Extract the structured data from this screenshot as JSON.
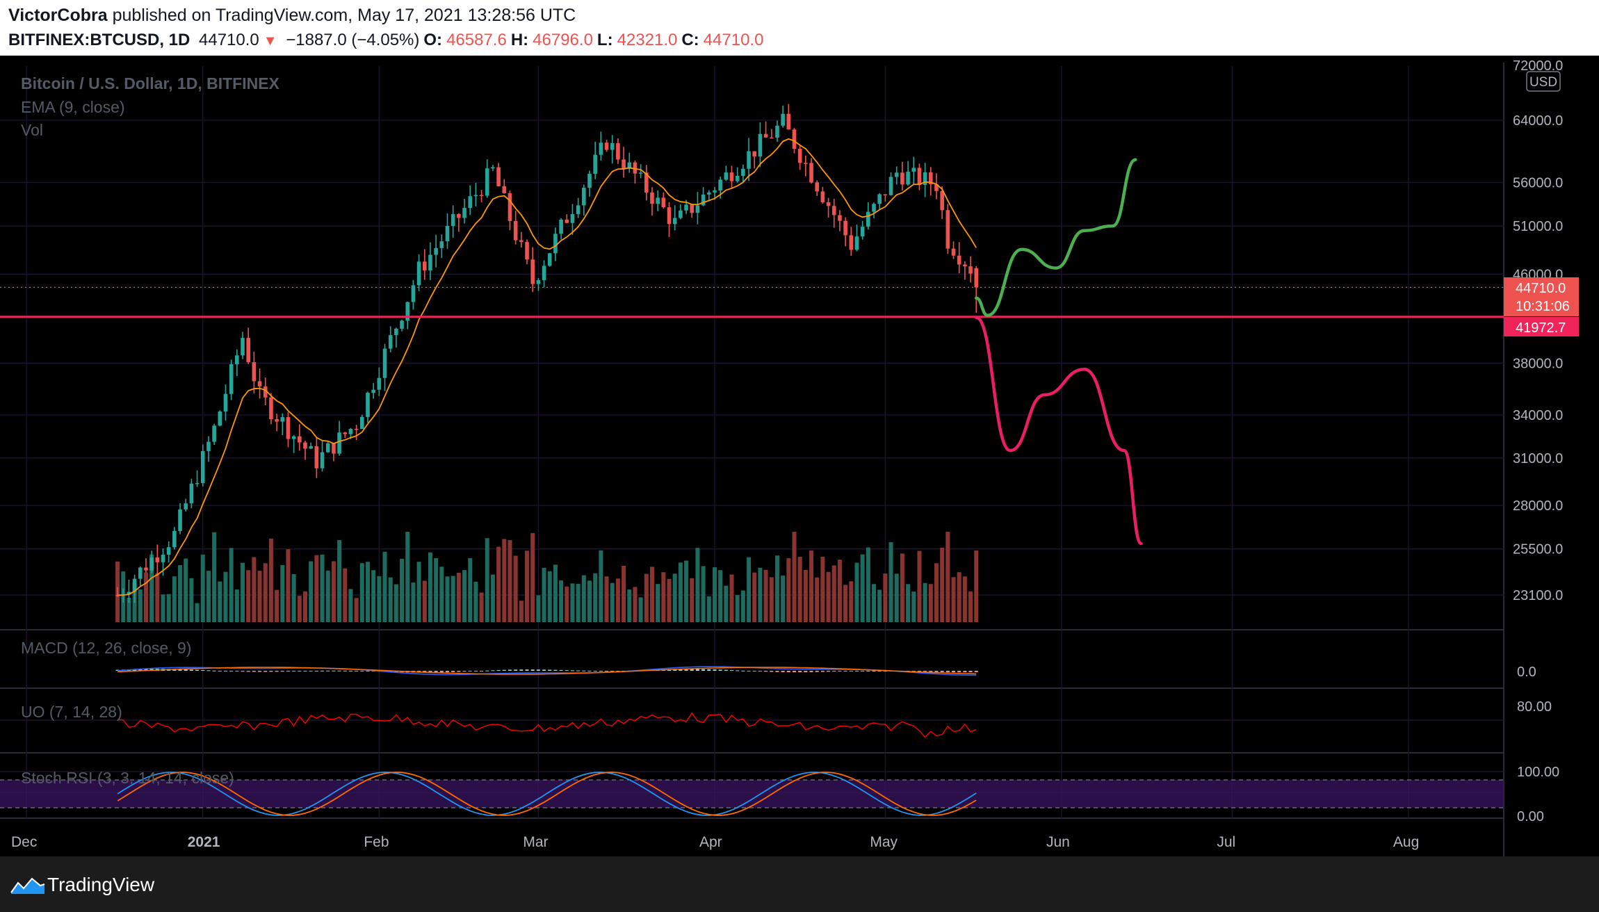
{
  "header": {
    "author": "VictorCobra",
    "published_text": "published on TradingView.com, May 17, 2021 13:28:56 UTC",
    "symbol": "BITFINEX:BTCUSD, 1D",
    "last": "44710.0",
    "change": "−1887.0 (−4.05%)",
    "o_label": "O:",
    "o_value": "46587.6",
    "h_label": "H:",
    "h_value": "46796.0",
    "l_label": "L:",
    "l_value": "42321.0",
    "c_label": "C:",
    "c_value": "44710.0"
  },
  "legend": {
    "title": "Bitcoin / U.S. Dollar, 1D, BITFINEX",
    "ema": "EMA (9, close)",
    "vol": "Vol"
  },
  "panes": {
    "macd": "MACD (12, 26, close, 9)",
    "uo": "UO (7, 14, 28)",
    "stoch": "Stoch RSI (3, 3, 14, 14, close)"
  },
  "footer": {
    "brand": "TradingView"
  },
  "colors": {
    "background": "#000000",
    "up": "#26a69a",
    "down": "#ef5350",
    "ema": "#ff9800",
    "level_line": "#f0235b",
    "bull_path": "#4caf50",
    "bear_path": "#e91e63",
    "macd": "#2962ff",
    "signal": "#ff6d00",
    "uo": "#ff0000",
    "stoch_k": "#2196f3",
    "stoch_d": "#ff6d00",
    "stoch_band": "#3a1460"
  },
  "chart_data": {
    "type": "candlestick",
    "price_axis": {
      "currency": "USD",
      "scale": "log",
      "ticks": [
        "72000.0",
        "64000.0",
        "56000.0",
        "51000.0",
        "46000.0",
        "38000.0",
        "34000.0",
        "31000.0",
        "28000.0",
        "25500.0",
        "23100.0"
      ],
      "range": [
        21500,
        72000
      ]
    },
    "time_axis": {
      "labels": [
        "Dec",
        "2021",
        "Feb",
        "Mar",
        "Apr",
        "May",
        "Jun",
        "Jul",
        "Aug"
      ]
    },
    "last_price": {
      "value": "44710.0",
      "countdown": "10:31:06"
    },
    "horizontal_level": {
      "value": "41972.7"
    },
    "ohlc_anchor_points": [
      [
        "2020-12-17",
        19400,
        23600,
        19300,
        23100
      ],
      [
        "2020-12-27",
        26200,
        28400,
        24500,
        26300
      ],
      [
        "2021-01-03",
        32200,
        34800,
        29000,
        33000
      ],
      [
        "2021-01-08",
        40500,
        41950,
        36600,
        40200
      ],
      [
        "2021-01-11",
        38200,
        38200,
        30500,
        35400
      ],
      [
        "2021-01-21",
        35500,
        35600,
        30100,
        30800
      ],
      [
        "2021-01-28",
        30400,
        34000,
        29800,
        33400
      ],
      [
        "2021-02-08",
        38800,
        46600,
        38000,
        46400
      ],
      [
        "2021-02-21",
        55800,
        58300,
        54000,
        57400
      ],
      [
        "2021-02-28",
        46200,
        48200,
        43000,
        45200
      ],
      [
        "2021-03-13",
        57100,
        61700,
        56000,
        61200
      ],
      [
        "2021-03-25",
        52300,
        53000,
        50600,
        51300
      ],
      [
        "2021-04-13",
        60000,
        64800,
        59800,
        63600
      ],
      [
        "2021-04-25",
        50000,
        50500,
        47000,
        49000
      ],
      [
        "2021-05-03",
        56600,
        58900,
        56400,
        57200
      ],
      [
        "2021-05-10",
        58200,
        59500,
        53400,
        55800
      ],
      [
        "2021-05-12",
        56700,
        58000,
        48800,
        49500
      ],
      [
        "2021-05-16",
        46400,
        49700,
        43900,
        46600
      ],
      [
        "2021-05-17",
        46587.6,
        46796.0,
        42321.0,
        44710.0
      ]
    ],
    "indicators": {
      "ema": "EMA (9, close)",
      "macd_zero": "0.0",
      "uo_level": "80.00",
      "stoch_levels": [
        "100.00",
        "0.00"
      ]
    },
    "annotations": [
      {
        "name": "bullish-projection",
        "points": [
          [
            "2021-05-17",
            43700
          ],
          [
            "2021-05-19",
            42100
          ],
          [
            "2021-05-25",
            48500
          ],
          [
            "2021-05-31",
            46600
          ],
          [
            "2021-06-05",
            50500
          ],
          [
            "2021-06-10",
            51000
          ],
          [
            "2021-06-14",
            58800
          ]
        ]
      },
      {
        "name": "bearish-projection",
        "points": [
          [
            "2021-05-17",
            41900
          ],
          [
            "2021-05-23",
            31500
          ],
          [
            "2021-05-29",
            35500
          ],
          [
            "2021-06-05",
            37500
          ],
          [
            "2021-06-12",
            31500
          ],
          [
            "2021-06-15",
            25800
          ]
        ]
      }
    ]
  }
}
